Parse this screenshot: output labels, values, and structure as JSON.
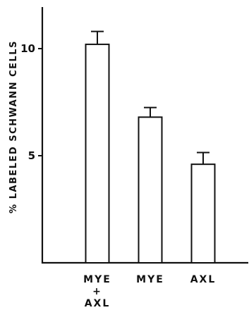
{
  "chart_data": {
    "type": "bar",
    "categories": [
      [
        "MYE",
        "+",
        "AXL"
      ],
      [
        "MYE"
      ],
      [
        "AXL"
      ]
    ],
    "values": [
      10.2,
      6.8,
      4.6
    ],
    "error_upper": [
      10.8,
      7.25,
      5.15
    ],
    "ylabel": "% LABELED SCHWANN CELLS",
    "xlabel": "",
    "yticks": [
      5,
      10
    ],
    "ytick_labels": [
      "5",
      "10"
    ],
    "ylim": [
      0,
      12
    ],
    "grid": false,
    "colors": {
      "bar_fill": "#ffffff",
      "stroke": "#111111"
    }
  }
}
